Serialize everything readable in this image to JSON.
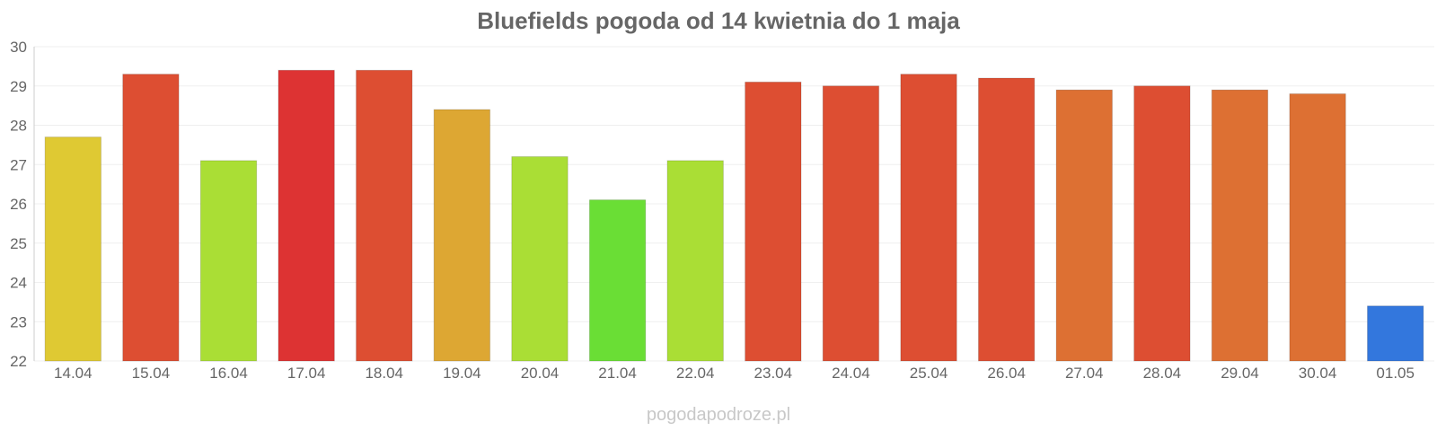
{
  "chart_data": {
    "type": "bar",
    "title": "Bluefields pogoda od 14 kwietnia do 1 maja",
    "xlabel": "",
    "ylabel": "",
    "ylim": [
      22,
      30
    ],
    "yticks": [
      22,
      23,
      24,
      25,
      26,
      27,
      28,
      29,
      30
    ],
    "grid": true,
    "categories": [
      "14.04",
      "15.04",
      "16.04",
      "17.04",
      "18.04",
      "19.04",
      "20.04",
      "21.04",
      "22.04",
      "23.04",
      "24.04",
      "25.04",
      "26.04",
      "27.04",
      "28.04",
      "29.04",
      "30.04",
      "01.05"
    ],
    "values": [
      27.7,
      29.3,
      27.1,
      29.4,
      29.4,
      28.4,
      27.2,
      26.1,
      27.1,
      29.1,
      29.0,
      29.3,
      29.2,
      28.9,
      29.0,
      28.9,
      28.8,
      23.4
    ],
    "colors": [
      "#dfc933",
      "#dd4e32",
      "#aade35",
      "#dd3333",
      "#dd4e32",
      "#dda733",
      "#aade35",
      "#6ade35",
      "#aade35",
      "#dd4e32",
      "#dd4e32",
      "#dd4e32",
      "#dd4e32",
      "#dd7033",
      "#dd4e32",
      "#dd7033",
      "#dd7033",
      "#3377dd"
    ]
  },
  "watermark": "pogodapodroze.pl"
}
